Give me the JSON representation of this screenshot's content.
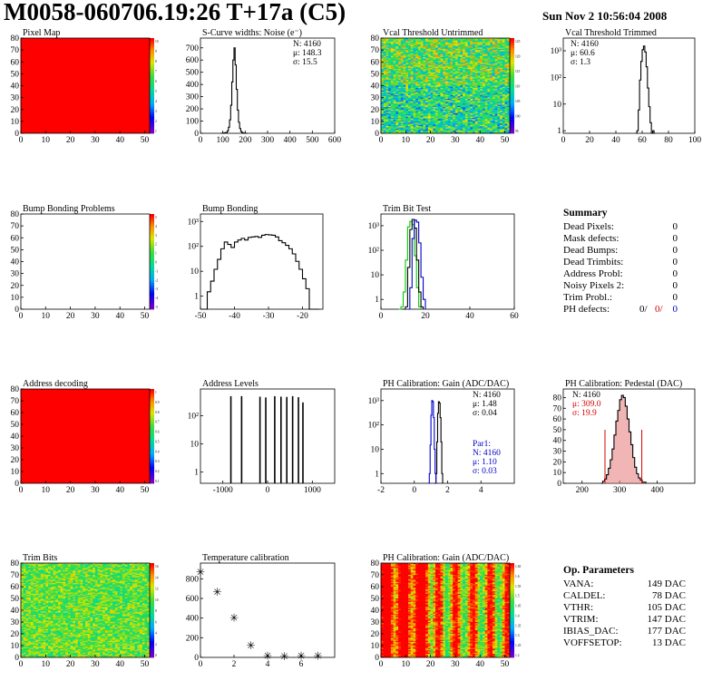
{
  "header": {
    "title": "M0058-060706.19:26 T+17a (C5)",
    "date": "Sun Nov  2 10:56:04 2008"
  },
  "colors": {
    "hist_line": "#000000",
    "series_green": "#00cc00",
    "series_blue": "#0000cc",
    "stats_red": "#d40000",
    "map_red": "#ff0000"
  },
  "chart_data": [
    {
      "id": "pixel_map",
      "type": "heatmap",
      "title": "Pixel Map",
      "x_ticks": [
        "0",
        "10",
        "20",
        "30",
        "40",
        "50"
      ],
      "y_ticks": [
        "0",
        "10",
        "20",
        "30",
        "40",
        "50",
        "60",
        "70",
        "80"
      ],
      "xlim": [
        0,
        52
      ],
      "ylim": [
        0,
        80
      ],
      "palette_ticks": [
        "10",
        "9",
        "8",
        "7",
        "6",
        "5",
        "4",
        "3",
        "2",
        "1"
      ],
      "fill": "uniform",
      "value": 10
    },
    {
      "id": "scurve_noise",
      "type": "histogram",
      "title": "S-Curve widths: Noise (e⁻)",
      "x_ticks": [
        "0",
        "100",
        "200",
        "300",
        "400",
        "500",
        "600"
      ],
      "y_ticks": [
        "0",
        "100",
        "200",
        "300",
        "400",
        "500",
        "600",
        "700"
      ],
      "xlim": [
        0,
        600
      ],
      "ylim": [
        0,
        780
      ],
      "log": false,
      "stats": [
        {
          "label": "N:",
          "value": "4160"
        },
        {
          "label": "μ:",
          "value": "148.3"
        },
        {
          "label": "σ:",
          "value": "15.5"
        }
      ],
      "series": [
        {
          "color": "#000000",
          "x": [
            90,
            100,
            110,
            120,
            125,
            130,
            135,
            140,
            145,
            150,
            155,
            160,
            165,
            170,
            175,
            180,
            185,
            190,
            195,
            200,
            210
          ],
          "y": [
            0,
            2,
            6,
            20,
            50,
            110,
            230,
            420,
            600,
            700,
            560,
            360,
            190,
            90,
            40,
            15,
            6,
            2,
            1,
            0,
            0
          ]
        }
      ]
    },
    {
      "id": "vcal_untrimmed",
      "type": "heatmap",
      "title": "Vcal Threshold Untrimmed",
      "x_ticks": [
        "0",
        "10",
        "20",
        "30",
        "40",
        "50"
      ],
      "y_ticks": [
        "0",
        "10",
        "20",
        "30",
        "40",
        "50",
        "60",
        "70",
        "80"
      ],
      "xlim": [
        0,
        52
      ],
      "ylim": [
        0,
        80
      ],
      "palette_ticks": [
        "125",
        "120",
        "115",
        "110",
        "105",
        "100",
        "95"
      ],
      "fill": "noisy",
      "palette": "rainbow"
    },
    {
      "id": "vcal_trimmed",
      "type": "histogram",
      "title": "Vcal Threshold Trimmed",
      "x_ticks": [
        "0",
        "20",
        "40",
        "60",
        "80",
        "100"
      ],
      "y_ticks": [
        "1",
        "10",
        "10²",
        "10³"
      ],
      "xlim": [
        0,
        100
      ],
      "ylim": [
        0.8,
        3000
      ],
      "log": true,
      "stats": [
        {
          "label": "N:",
          "value": "4160"
        },
        {
          "label": "μ:",
          "value": "60.6"
        },
        {
          "label": "σ:",
          "value": "1.3"
        }
      ],
      "series": [
        {
          "color": "#000000",
          "x": [
            55,
            56,
            57,
            58,
            59,
            60,
            61,
            62,
            63,
            64,
            65,
            66,
            67,
            68,
            69,
            70
          ],
          "y": [
            0,
            1,
            6,
            80,
            400,
            1100,
            1500,
            900,
            250,
            40,
            8,
            2,
            0,
            1,
            0,
            0
          ]
        }
      ]
    },
    {
      "id": "bump_problems",
      "type": "heatmap",
      "title": "Bump Bonding Problems",
      "x_ticks": [
        "0",
        "10",
        "20",
        "30",
        "40",
        "50"
      ],
      "y_ticks": [
        "0",
        "10",
        "20",
        "30",
        "40",
        "50",
        "60",
        "70",
        "80"
      ],
      "xlim": [
        0,
        52
      ],
      "ylim": [
        0,
        80
      ],
      "palette_ticks": [
        "5",
        "4",
        "3",
        "2",
        "1",
        "0",
        "-1",
        "-2",
        "-3",
        "-4",
        "-5"
      ],
      "fill": "empty"
    },
    {
      "id": "bump_bonding",
      "type": "histogram",
      "title": "Bump Bonding",
      "x_ticks": [
        "-50",
        "-40",
        "-30",
        "-20"
      ],
      "y_ticks": [
        "1",
        "10",
        "10²",
        "10³"
      ],
      "xlim": [
        -50,
        -14
      ],
      "ylim": [
        0.3,
        2000
      ],
      "log": true,
      "series": [
        {
          "color": "#000000",
          "x": [
            -50,
            -49,
            -48,
            -47,
            -46,
            -45,
            -44,
            -43,
            -42,
            -41,
            -40,
            -39,
            -38,
            -37,
            -36,
            -35,
            -34,
            -33,
            -32,
            -31,
            -30,
            -29,
            -28,
            -27,
            -26,
            -25,
            -24,
            -23,
            -22,
            -21,
            -20,
            -19,
            -18,
            -17,
            -16,
            -15
          ],
          "y": [
            0.3,
            0.3,
            1.5,
            4,
            12,
            30,
            80,
            150,
            120,
            90,
            150,
            180,
            210,
            180,
            230,
            240,
            250,
            230,
            280,
            300,
            290,
            280,
            240,
            170,
            140,
            110,
            80,
            50,
            25,
            12,
            5,
            2,
            0.3,
            0.3,
            0.3,
            0.3
          ]
        }
      ]
    },
    {
      "id": "trim_bit_test",
      "type": "histogram",
      "title": "Trim Bit Test",
      "x_ticks": [
        "0",
        "20",
        "40",
        "60"
      ],
      "y_ticks": [
        "1",
        "10",
        "10²",
        "10³"
      ],
      "xlim": [
        0,
        60
      ],
      "ylim": [
        0.4,
        3000
      ],
      "log": true,
      "series": [
        {
          "color": "#00cc00",
          "x": [
            8,
            9,
            10,
            11,
            12,
            13,
            14,
            15,
            16,
            17,
            18
          ],
          "y": [
            0,
            0.5,
            2,
            40,
            900,
            1500,
            1100,
            60,
            3,
            0.5,
            0
          ]
        },
        {
          "color": "#000000",
          "x": [
            10,
            11,
            12,
            13,
            14,
            15,
            16,
            17,
            18,
            19
          ],
          "y": [
            0,
            0.5,
            20,
            700,
            1800,
            800,
            40,
            2,
            0.5,
            0
          ]
        },
        {
          "color": "#0000cc",
          "x": [
            12,
            13,
            14,
            15,
            16,
            17,
            18,
            19,
            20
          ],
          "y": [
            0,
            3,
            300,
            1700,
            1400,
            200,
            8,
            1,
            0
          ]
        }
      ]
    },
    {
      "id": "address_decoding",
      "type": "heatmap",
      "title": "Address decoding",
      "x_ticks": [
        "0",
        "10",
        "20",
        "30",
        "40",
        "50"
      ],
      "y_ticks": [
        "0",
        "10",
        "20",
        "30",
        "40",
        "50",
        "60",
        "70",
        "80"
      ],
      "xlim": [
        0,
        52
      ],
      "ylim": [
        0,
        80
      ],
      "palette_ticks": [
        "1",
        "0.9",
        "0.8",
        "0.7",
        "0.6",
        "0.5",
        "0.4",
        "0.3",
        "0.2",
        "0.1"
      ],
      "fill": "uniform",
      "value": 1
    },
    {
      "id": "address_levels",
      "type": "histogram",
      "title": "Address Levels",
      "x_ticks": [
        "-1000",
        "0",
        "1000"
      ],
      "y_ticks": [
        "1",
        "10",
        "10²"
      ],
      "xlim": [
        -1500,
        1500
      ],
      "ylim": [
        0.4,
        900
      ],
      "log": true,
      "spikes": [
        -820,
        -580,
        -170,
        -40,
        160,
        300,
        430,
        560,
        690,
        790
      ],
      "spike_heights": [
        500,
        500,
        480,
        450,
        500,
        480,
        470,
        500,
        460,
        300
      ]
    },
    {
      "id": "ph_gain",
      "type": "histogram",
      "title": "PH Calibration: Gain (ADC/DAC)",
      "x_ticks": [
        "-2",
        "0",
        "2",
        "4"
      ],
      "y_ticks": [
        "1",
        "10",
        "10²",
        "10³"
      ],
      "xlim": [
        -2,
        6
      ],
      "ylim": [
        0.4,
        3000
      ],
      "log": true,
      "stats": [
        {
          "label": "N:",
          "value": "4160"
        },
        {
          "label": "μ:",
          "value": "1.48"
        },
        {
          "label": "σ:",
          "value": "0.04"
        }
      ],
      "stats2": [
        {
          "label": "Par1:",
          "value": ""
        },
        {
          "label": "N:",
          "value": "4160"
        },
        {
          "label": "μ:",
          "value": "1.10"
        },
        {
          "label": "σ:",
          "value": "0.03"
        }
      ],
      "series": [
        {
          "color": "#000000",
          "x": [
            1.2,
            1.3,
            1.35,
            1.4,
            1.45,
            1.5,
            1.55,
            1.6,
            1.65,
            1.7
          ],
          "y": [
            0,
            1,
            20,
            300,
            900,
            800,
            200,
            20,
            1,
            0
          ]
        },
        {
          "color": "#0000cc",
          "x": [
            0.8,
            0.9,
            0.95,
            1.0,
            1.05,
            1.1,
            1.15,
            1.2,
            1.25,
            1.3
          ],
          "y": [
            0,
            1,
            15,
            250,
            1000,
            900,
            200,
            10,
            1,
            0
          ]
        }
      ]
    },
    {
      "id": "ph_pedestal",
      "type": "histogram",
      "title": "PH Calibration: Pedestal (DAC)",
      "x_ticks": [
        "200",
        "300",
        "400"
      ],
      "y_ticks": [
        "0",
        "10",
        "20",
        "30",
        "40",
        "50",
        "60",
        "70",
        "80"
      ],
      "xlim": [
        150,
        500
      ],
      "ylim": [
        0,
        88
      ],
      "log": false,
      "stats": [
        {
          "label": "N:",
          "value": "4160"
        },
        {
          "label": "μ:",
          "value": "309.0",
          "color": "red"
        },
        {
          "label": "σ:",
          "value": "19.9",
          "color": "red"
        }
      ],
      "markers": [
        261,
        359
      ],
      "series": [
        {
          "color": "#000000",
          "x": [
            250,
            255,
            260,
            265,
            270,
            275,
            280,
            285,
            290,
            295,
            300,
            305,
            310,
            315,
            320,
            325,
            330,
            335,
            340,
            345,
            350,
            355,
            360,
            365,
            370
          ],
          "y": [
            0,
            2,
            4,
            8,
            14,
            22,
            32,
            45,
            58,
            68,
            78,
            82,
            80,
            72,
            60,
            48,
            36,
            24,
            15,
            9,
            5,
            3,
            1,
            1,
            0
          ]
        }
      ]
    },
    {
      "id": "trim_bits",
      "type": "heatmap",
      "title": "Trim Bits",
      "x_ticks": [
        "0",
        "10",
        "20",
        "30",
        "40",
        "50"
      ],
      "y_ticks": [
        "0",
        "10",
        "20",
        "30",
        "40",
        "50",
        "60",
        "70",
        "80"
      ],
      "xlim": [
        0,
        52
      ],
      "ylim": [
        0,
        80
      ],
      "palette_ticks": [
        "16",
        "14",
        "12",
        "10",
        "8",
        "6",
        "4",
        "2",
        "0"
      ],
      "fill": "noisy",
      "palette": "greenish"
    },
    {
      "id": "temperature_calibration",
      "type": "scatter",
      "title": "Temperature calibration",
      "x_ticks": [
        "0",
        "2",
        "4",
        "6"
      ],
      "y_ticks": [
        "0",
        "200",
        "400",
        "600",
        "800"
      ],
      "xlim": [
        0,
        8
      ],
      "ylim": [
        0,
        960
      ],
      "log": false,
      "x": [
        0,
        1,
        2,
        3,
        4,
        5,
        6,
        7
      ],
      "y": [
        870,
        665,
        400,
        120,
        15,
        10,
        15,
        15
      ]
    },
    {
      "id": "ph_gain_map",
      "type": "heatmap",
      "title": "PH Calibration: Gain (ADC/DAC)",
      "x_ticks": [
        "0",
        "10",
        "20",
        "30",
        "40",
        "50"
      ],
      "y_ticks": [
        "0",
        "10",
        "20",
        "30",
        "40",
        "50",
        "60",
        "70",
        "80"
      ],
      "xlim": [
        0,
        52
      ],
      "ylim": [
        0,
        80
      ],
      "palette_ticks": [
        "1.65",
        "1.6",
        "1.55",
        "1.5",
        "1.45",
        "1.4",
        "1.35",
        "1.3",
        "1.25",
        "1.2"
      ],
      "fill": "columns",
      "palette": "hot"
    }
  ],
  "summary": {
    "title": "Summary",
    "rows": [
      {
        "label": "Dead Pixels:",
        "value": "0"
      },
      {
        "label": "Mask defects:",
        "value": "0"
      },
      {
        "label": "Dead Bumps:",
        "value": "0"
      },
      {
        "label": "Dead Trimbits:",
        "value": "0"
      },
      {
        "label": "Address Probl:",
        "value": "0"
      },
      {
        "label": "Noisy Pixels 2:",
        "value": "0"
      },
      {
        "label": "Trim Probl.:",
        "value": "0"
      }
    ],
    "ph_label": "PH defects:",
    "ph_values": [
      "0/",
      "0/",
      "0"
    ]
  },
  "op_params": {
    "title": "Op. Parameters",
    "rows": [
      {
        "label": "VANA:",
        "value": "149 DAC"
      },
      {
        "label": "CALDEL:",
        "value": "78 DAC"
      },
      {
        "label": "VTHR:",
        "value": "105 DAC"
      },
      {
        "label": "VTRIM:",
        "value": "147 DAC"
      },
      {
        "label": "IBIAS_DAC:",
        "value": "177 DAC"
      },
      {
        "label": "VOFFSETOP:",
        "value": "13 DAC"
      }
    ]
  }
}
